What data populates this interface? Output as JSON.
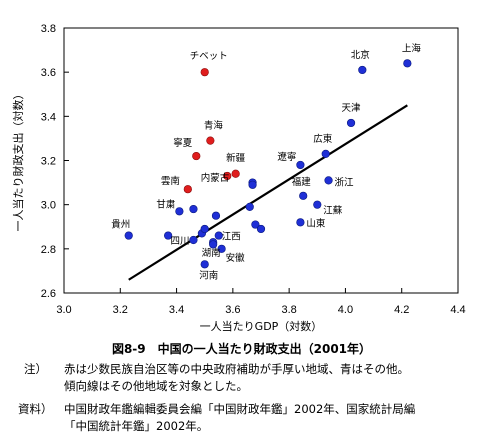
{
  "chart_data": {
    "type": "scatter",
    "xlabel": "一人当たりGDP（対数）",
    "ylabel": "一人当たり財政支出（対数）",
    "xlim": [
      3.0,
      4.4
    ],
    "ylim": [
      2.6,
      3.8
    ],
    "xticks": [
      "3.0",
      "3.2",
      "3.4",
      "3.6",
      "3.8",
      "4.0",
      "4.2",
      "4.4"
    ],
    "yticks": [
      "2.6",
      "2.8",
      "3.0",
      "3.2",
      "3.4",
      "3.6",
      "3.8"
    ],
    "grid": false,
    "colors": {
      "other": "#1f2fd6",
      "minority": "#e01d1d",
      "line": "#000000"
    },
    "trendline": {
      "x": [
        3.23,
        4.22
      ],
      "y": [
        2.66,
        3.45
      ]
    },
    "points": [
      {
        "x": 3.23,
        "y": 2.86,
        "group": "other",
        "label": "貴州"
      },
      {
        "x": 3.37,
        "y": 2.86,
        "group": "other",
        "label": ""
      },
      {
        "x": 3.41,
        "y": 2.97,
        "group": "other",
        "label": "甘粛"
      },
      {
        "x": 3.44,
        "y": 3.07,
        "group": "minority",
        "label": "雲南"
      },
      {
        "x": 3.46,
        "y": 2.84,
        "group": "other",
        "label": "四川"
      },
      {
        "x": 3.46,
        "y": 2.98,
        "group": "other",
        "label": ""
      },
      {
        "x": 3.47,
        "y": 3.22,
        "group": "minority",
        "label": "寧夏"
      },
      {
        "x": 3.49,
        "y": 2.87,
        "group": "other",
        "label": ""
      },
      {
        "x": 3.5,
        "y": 2.89,
        "group": "other",
        "label": ""
      },
      {
        "x": 3.5,
        "y": 2.73,
        "group": "other",
        "label": "河南"
      },
      {
        "x": 3.5,
        "y": 3.6,
        "group": "minority",
        "label": "チベット"
      },
      {
        "x": 3.52,
        "y": 3.29,
        "group": "minority",
        "label": "青海"
      },
      {
        "x": 3.53,
        "y": 2.83,
        "group": "other",
        "label": "湖南"
      },
      {
        "x": 3.53,
        "y": 2.82,
        "group": "other",
        "label": ""
      },
      {
        "x": 3.54,
        "y": 2.95,
        "group": "other",
        "label": ""
      },
      {
        "x": 3.55,
        "y": 2.86,
        "group": "other",
        "label": "江西"
      },
      {
        "x": 3.56,
        "y": 2.8,
        "group": "other",
        "label": "安徽"
      },
      {
        "x": 3.58,
        "y": 3.13,
        "group": "minority",
        "label": "内蒙古"
      },
      {
        "x": 3.61,
        "y": 3.14,
        "group": "minority",
        "label": "新疆"
      },
      {
        "x": 3.66,
        "y": 2.99,
        "group": "other",
        "label": ""
      },
      {
        "x": 3.67,
        "y": 3.1,
        "group": "other",
        "label": ""
      },
      {
        "x": 3.67,
        "y": 3.09,
        "group": "other",
        "label": ""
      },
      {
        "x": 3.68,
        "y": 2.91,
        "group": "other",
        "label": ""
      },
      {
        "x": 3.7,
        "y": 2.89,
        "group": "other",
        "label": ""
      },
      {
        "x": 3.84,
        "y": 3.18,
        "group": "other",
        "label": "遼寧"
      },
      {
        "x": 3.84,
        "y": 2.92,
        "group": "other",
        "label": "山東"
      },
      {
        "x": 3.85,
        "y": 3.04,
        "group": "other",
        "label": "福建"
      },
      {
        "x": 3.9,
        "y": 3.0,
        "group": "other",
        "label": "江蘇"
      },
      {
        "x": 3.93,
        "y": 3.23,
        "group": "other",
        "label": "広東"
      },
      {
        "x": 3.94,
        "y": 3.11,
        "group": "other",
        "label": "浙江"
      },
      {
        "x": 4.02,
        "y": 3.37,
        "group": "other",
        "label": "天津"
      },
      {
        "x": 4.06,
        "y": 3.61,
        "group": "other",
        "label": "北京"
      },
      {
        "x": 4.22,
        "y": 3.64,
        "group": "other",
        "label": "上海"
      }
    ]
  },
  "caption": "図8-9　中国の一人当たり財政支出（2001年）",
  "notes": [
    {
      "label": "注）",
      "lines": [
        "赤は少数民族自治区等の中央政府補助が手厚い地域、青はその他。",
        "傾向線はその他地域を対象とした。"
      ]
    },
    {
      "label": "資料）",
      "lines": [
        "中国財政年鑑編輯委員会編「中国財政年鑑」2002年、国家統計局編",
        "「中国統計年鑑」2002年。"
      ]
    }
  ]
}
